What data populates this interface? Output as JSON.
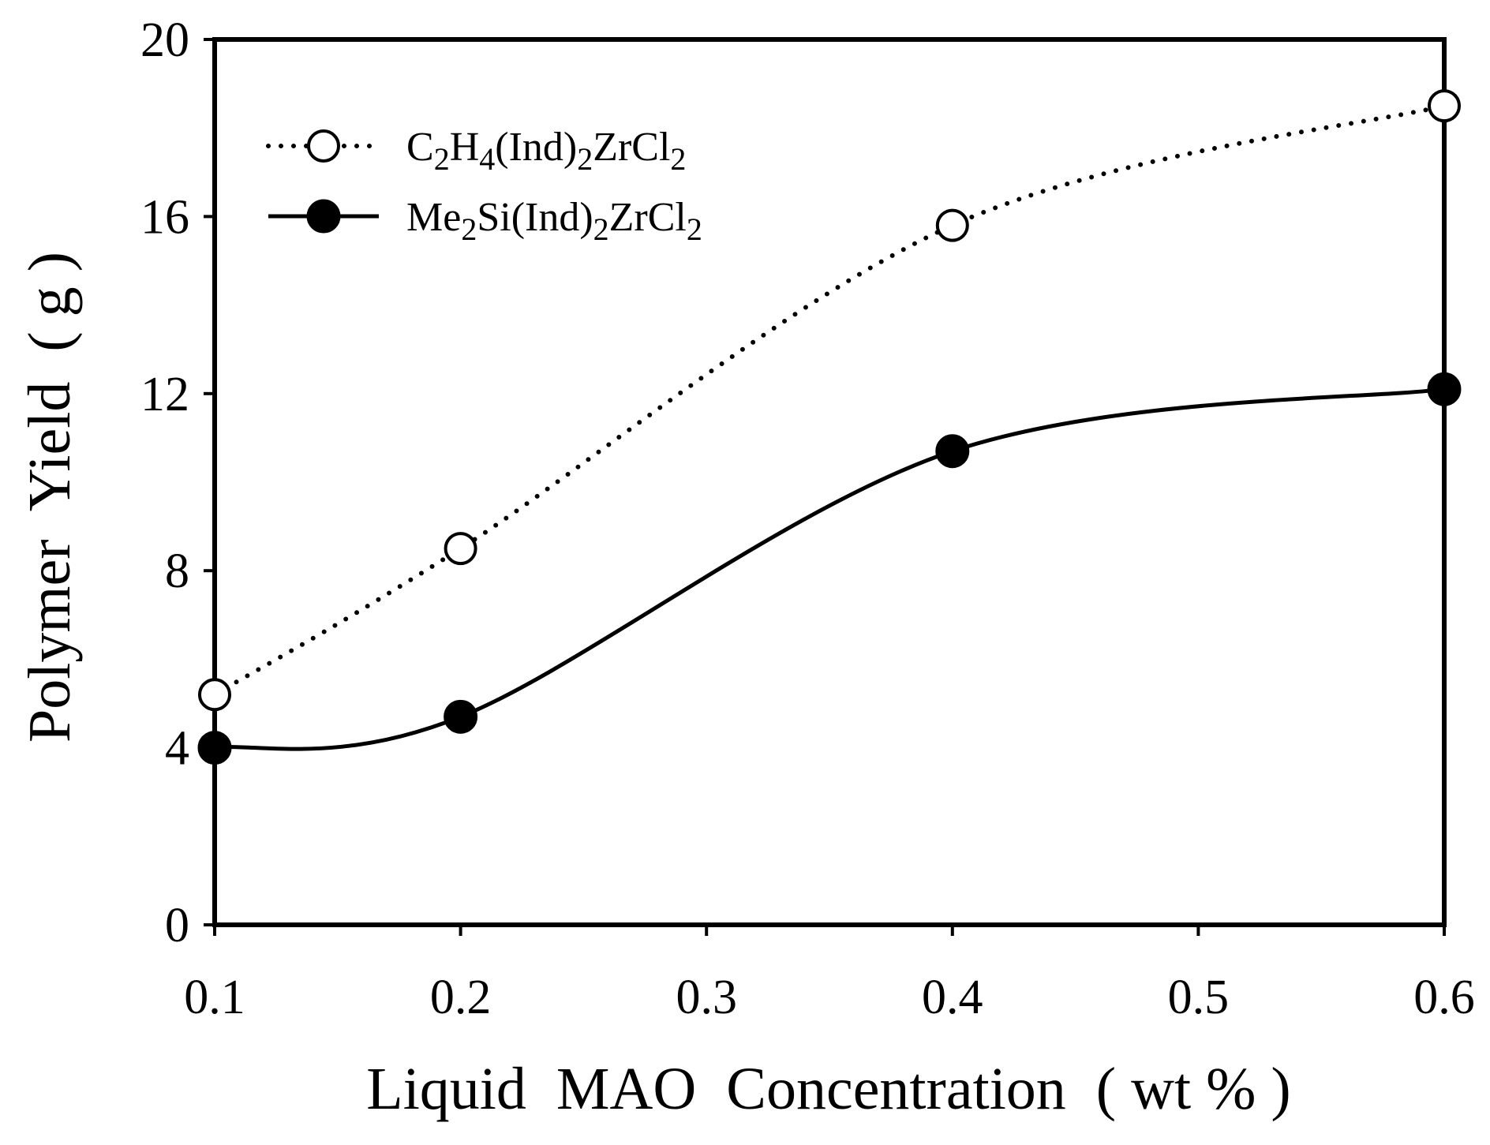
{
  "chart_data": {
    "type": "line",
    "title": "",
    "xlabel": "Liquid  MAO  Concentration  ( wt % )",
    "ylabel": "Polymer  Yield  ( g )",
    "xlim": [
      0.1,
      0.6
    ],
    "ylim": [
      0,
      20
    ],
    "x_ticks": [
      0.1,
      0.2,
      0.3,
      0.4,
      0.5,
      0.6
    ],
    "x_tick_labels": [
      "0.1",
      "0.2",
      "0.3",
      "0.4",
      "0.5",
      "0.6"
    ],
    "y_ticks": [
      0,
      4,
      8,
      12,
      16,
      20
    ],
    "y_tick_labels": [
      "0",
      "4",
      "8",
      "12",
      "16",
      "20"
    ],
    "grid": false,
    "legend_position": "top-left",
    "series": [
      {
        "name": "C2H4(Ind)2ZrCl2",
        "legend_parts": [
          {
            "t": "C",
            "sub": false
          },
          {
            "t": "2",
            "sub": true
          },
          {
            "t": "H",
            "sub": false
          },
          {
            "t": "4",
            "sub": true
          },
          {
            "t": "(Ind)",
            "sub": false
          },
          {
            "t": "2",
            "sub": true
          },
          {
            "t": "ZrCl",
            "sub": false
          },
          {
            "t": "2",
            "sub": true
          }
        ],
        "line_style": "dotted",
        "marker": "open-circle",
        "x": [
          0.1,
          0.2,
          0.4,
          0.6
        ],
        "values": [
          5.2,
          8.5,
          15.8,
          18.5
        ]
      },
      {
        "name": "Me2Si(Ind)2ZrCl2",
        "legend_parts": [
          {
            "t": "Me",
            "sub": false
          },
          {
            "t": "2",
            "sub": true
          },
          {
            "t": "Si(Ind)",
            "sub": false
          },
          {
            "t": "2",
            "sub": true
          },
          {
            "t": "ZrCl",
            "sub": false
          },
          {
            "t": "2",
            "sub": true
          }
        ],
        "line_style": "solid",
        "marker": "filled-circle",
        "x": [
          0.1,
          0.2,
          0.4,
          0.6
        ],
        "values": [
          4.0,
          4.7,
          10.7,
          12.1
        ]
      }
    ],
    "colors": {
      "line": "#000000",
      "marker_fill_open": "#ffffff",
      "marker_fill_filled": "#000000"
    }
  }
}
